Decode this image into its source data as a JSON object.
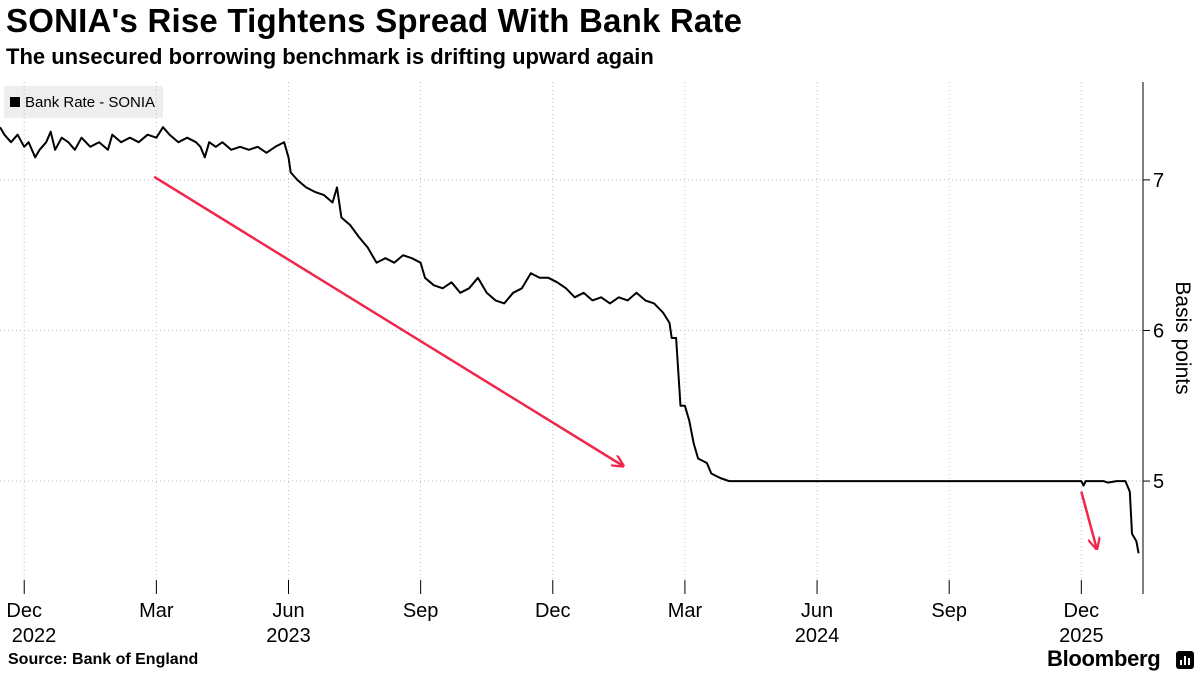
{
  "header": {
    "title": "SONIA's Rise Tightens Spread With Bank Rate",
    "subtitle": "The unsecured borrowing benchmark is drifting upward again"
  },
  "footer": {
    "source": "Source: Bank of England",
    "brand": "Bloomberg"
  },
  "colors": {
    "line": "#000000",
    "arrow": "#f0274a",
    "grid": "#bdbdbd",
    "legend_bg": "#eeeeee"
  },
  "chart_data": {
    "type": "line",
    "title": "SONIA's Rise Tightens Spread With Bank Rate",
    "subtitle": "The unsecured borrowing benchmark is drifting upward again",
    "ylabel": "Basis points",
    "ylim": [
      4.25,
      7.65
    ],
    "yticks": [
      5,
      6,
      7
    ],
    "grid": true,
    "legend_position": "top-left",
    "x_range_month_index": [
      -0.55,
      25.4
    ],
    "x_ticks": [
      {
        "m": 0,
        "label": "Dec",
        "year": "2022"
      },
      {
        "m": 3,
        "label": "Mar",
        "year": ""
      },
      {
        "m": 6,
        "label": "Jun",
        "year": "2023"
      },
      {
        "m": 9,
        "label": "Sep",
        "year": ""
      },
      {
        "m": 12,
        "label": "Dec",
        "year": ""
      },
      {
        "m": 15,
        "label": "Mar",
        "year": ""
      },
      {
        "m": 18,
        "label": "Jun",
        "year": "2024"
      },
      {
        "m": 21,
        "label": "Sep",
        "year": ""
      },
      {
        "m": 24,
        "label": "Dec",
        "year": "2025"
      }
    ],
    "series": [
      {
        "name": "Bank Rate - SONIA",
        "points": [
          [
            -0.55,
            7.35
          ],
          [
            -0.45,
            7.3
          ],
          [
            -0.3,
            7.25
          ],
          [
            -0.15,
            7.3
          ],
          [
            0.0,
            7.22
          ],
          [
            0.1,
            7.25
          ],
          [
            0.25,
            7.15
          ],
          [
            0.35,
            7.2
          ],
          [
            0.5,
            7.25
          ],
          [
            0.6,
            7.32
          ],
          [
            0.7,
            7.2
          ],
          [
            0.85,
            7.28
          ],
          [
            1.0,
            7.25
          ],
          [
            1.15,
            7.2
          ],
          [
            1.3,
            7.28
          ],
          [
            1.5,
            7.22
          ],
          [
            1.7,
            7.25
          ],
          [
            1.9,
            7.2
          ],
          [
            2.0,
            7.3
          ],
          [
            2.2,
            7.25
          ],
          [
            2.4,
            7.28
          ],
          [
            2.6,
            7.25
          ],
          [
            2.8,
            7.3
          ],
          [
            3.0,
            7.28
          ],
          [
            3.15,
            7.35
          ],
          [
            3.3,
            7.3
          ],
          [
            3.5,
            7.25
          ],
          [
            3.7,
            7.28
          ],
          [
            3.9,
            7.25
          ],
          [
            4.0,
            7.22
          ],
          [
            4.1,
            7.15
          ],
          [
            4.2,
            7.25
          ],
          [
            4.35,
            7.22
          ],
          [
            4.5,
            7.25
          ],
          [
            4.7,
            7.2
          ],
          [
            4.9,
            7.22
          ],
          [
            5.1,
            7.2
          ],
          [
            5.3,
            7.22
          ],
          [
            5.5,
            7.18
          ],
          [
            5.7,
            7.22
          ],
          [
            5.9,
            7.25
          ],
          [
            6.0,
            7.15
          ],
          [
            6.05,
            7.05
          ],
          [
            6.2,
            7.0
          ],
          [
            6.4,
            6.95
          ],
          [
            6.6,
            6.92
          ],
          [
            6.8,
            6.9
          ],
          [
            7.0,
            6.85
          ],
          [
            7.1,
            6.95
          ],
          [
            7.2,
            6.75
          ],
          [
            7.4,
            6.7
          ],
          [
            7.6,
            6.62
          ],
          [
            7.8,
            6.55
          ],
          [
            7.9,
            6.5
          ],
          [
            8.0,
            6.45
          ],
          [
            8.2,
            6.48
          ],
          [
            8.4,
            6.45
          ],
          [
            8.6,
            6.5
          ],
          [
            8.8,
            6.48
          ],
          [
            9.0,
            6.45
          ],
          [
            9.1,
            6.35
          ],
          [
            9.3,
            6.3
          ],
          [
            9.5,
            6.28
          ],
          [
            9.7,
            6.32
          ],
          [
            9.9,
            6.25
          ],
          [
            10.1,
            6.28
          ],
          [
            10.3,
            6.35
          ],
          [
            10.5,
            6.25
          ],
          [
            10.7,
            6.2
          ],
          [
            10.9,
            6.18
          ],
          [
            11.1,
            6.25
          ],
          [
            11.3,
            6.28
          ],
          [
            11.5,
            6.38
          ],
          [
            11.7,
            6.35
          ],
          [
            11.9,
            6.35
          ],
          [
            12.1,
            6.32
          ],
          [
            12.3,
            6.28
          ],
          [
            12.5,
            6.22
          ],
          [
            12.7,
            6.25
          ],
          [
            12.9,
            6.2
          ],
          [
            13.1,
            6.22
          ],
          [
            13.3,
            6.18
          ],
          [
            13.5,
            6.22
          ],
          [
            13.7,
            6.2
          ],
          [
            13.9,
            6.25
          ],
          [
            14.1,
            6.2
          ],
          [
            14.3,
            6.18
          ],
          [
            14.5,
            6.12
          ],
          [
            14.65,
            6.05
          ],
          [
            14.7,
            5.95
          ],
          [
            14.8,
            5.95
          ],
          [
            14.9,
            5.5
          ],
          [
            15.0,
            5.5
          ],
          [
            15.1,
            5.4
          ],
          [
            15.2,
            5.25
          ],
          [
            15.3,
            5.15
          ],
          [
            15.5,
            5.12
          ],
          [
            15.6,
            5.05
          ],
          [
            15.8,
            5.02
          ],
          [
            16.0,
            5.0
          ],
          [
            17.0,
            5.0
          ],
          [
            20.0,
            5.0
          ],
          [
            23.0,
            5.0
          ],
          [
            24.0,
            5.0
          ],
          [
            24.05,
            4.97
          ],
          [
            24.1,
            5.0
          ],
          [
            24.5,
            5.0
          ],
          [
            24.6,
            4.99
          ],
          [
            24.8,
            5.0
          ],
          [
            25.0,
            5.0
          ],
          [
            25.1,
            4.93
          ],
          [
            25.15,
            4.65
          ],
          [
            25.25,
            4.6
          ],
          [
            25.3,
            4.52
          ]
        ]
      }
    ],
    "annotations": [
      {
        "type": "arrow",
        "color": "#f0274a",
        "from": [
          2.95,
          7.02
        ],
        "to": [
          13.6,
          5.1
        ]
      },
      {
        "type": "arrow",
        "color": "#f0274a",
        "from": [
          24.0,
          4.93
        ],
        "to": [
          24.35,
          4.55
        ]
      }
    ]
  }
}
